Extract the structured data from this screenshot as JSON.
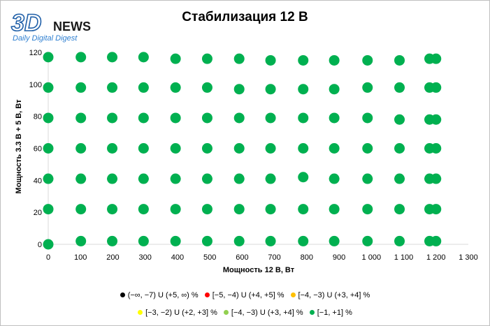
{
  "logo": {
    "brand": "3D",
    "word": "NEWS",
    "tagline": "Daily Digital Digest"
  },
  "chart_data": {
    "type": "scatter",
    "title": "Стабилизация 12 В",
    "xlabel": "Мощность  12 В, Вт",
    "ylabel": "Мощность  3.3 В + 5 В, Вт",
    "xlim": [
      0,
      1300
    ],
    "ylim": [
      0,
      120
    ],
    "x_ticks": [
      0,
      100,
      200,
      300,
      400,
      500,
      600,
      700,
      800,
      900,
      1000,
      1100,
      1200,
      1300
    ],
    "x_tick_labels": [
      "0",
      "100",
      "200",
      "300",
      "400",
      "500",
      "600",
      "700",
      "800",
      "900",
      "1 000",
      "1 100",
      "1 200",
      "1 300"
    ],
    "y_ticks": [
      0,
      20,
      40,
      60,
      80,
      100,
      120
    ],
    "y_tick_labels": [
      "0",
      "20",
      "40",
      "60",
      "80",
      "100",
      "120"
    ],
    "grid": false,
    "legend_position": "bottom",
    "series": [
      {
        "name": "(−∞, −7) U (+5, ∞) %",
        "color": "#000000",
        "points": []
      },
      {
        "name": "[−5, −4) U (+4, +5] %",
        "color": "#ff0000",
        "points": []
      },
      {
        "name": "[−4, −3) U (+3, +4] %",
        "color": "#ffc000",
        "points": []
      },
      {
        "name": "[−3, −2) U (+2, +3] %",
        "color": "#ffff00",
        "points": []
      },
      {
        "name": "[−4, −3) U (+3, +4] %",
        "color": "#92d050",
        "points": []
      },
      {
        "name": "[−1, +1] %",
        "color": "#00b050",
        "points": [
          [
            0,
            0
          ],
          [
            0,
            22
          ],
          [
            0,
            41
          ],
          [
            0,
            60
          ],
          [
            0,
            79
          ],
          [
            0,
            98
          ],
          [
            0,
            117
          ],
          [
            101,
            2
          ],
          [
            101,
            22
          ],
          [
            101,
            41
          ],
          [
            101,
            60
          ],
          [
            101,
            79
          ],
          [
            101,
            98
          ],
          [
            101,
            117
          ],
          [
            198,
            2
          ],
          [
            198,
            22
          ],
          [
            198,
            41
          ],
          [
            198,
            60
          ],
          [
            198,
            79
          ],
          [
            198,
            98
          ],
          [
            198,
            117
          ],
          [
            295,
            2
          ],
          [
            295,
            22
          ],
          [
            295,
            41
          ],
          [
            295,
            60
          ],
          [
            295,
            79
          ],
          [
            295,
            98
          ],
          [
            295,
            117
          ],
          [
            394,
            2
          ],
          [
            394,
            22
          ],
          [
            394,
            41
          ],
          [
            394,
            60
          ],
          [
            394,
            79
          ],
          [
            394,
            98
          ],
          [
            394,
            116
          ],
          [
            492,
            2
          ],
          [
            492,
            22
          ],
          [
            492,
            41
          ],
          [
            492,
            60
          ],
          [
            492,
            79
          ],
          [
            492,
            98
          ],
          [
            492,
            116
          ],
          [
            591,
            2
          ],
          [
            591,
            22
          ],
          [
            591,
            41
          ],
          [
            591,
            60
          ],
          [
            591,
            79
          ],
          [
            591,
            97
          ],
          [
            591,
            116
          ],
          [
            688,
            2
          ],
          [
            688,
            22
          ],
          [
            688,
            41
          ],
          [
            688,
            60
          ],
          [
            688,
            79
          ],
          [
            688,
            97
          ],
          [
            688,
            115
          ],
          [
            789,
            2
          ],
          [
            789,
            22
          ],
          [
            789,
            42
          ],
          [
            789,
            60
          ],
          [
            789,
            79
          ],
          [
            789,
            97
          ],
          [
            789,
            115
          ],
          [
            885,
            2
          ],
          [
            885,
            22
          ],
          [
            885,
            41
          ],
          [
            885,
            60
          ],
          [
            885,
            79
          ],
          [
            885,
            97
          ],
          [
            885,
            115
          ],
          [
            988,
            2
          ],
          [
            988,
            22
          ],
          [
            988,
            41
          ],
          [
            988,
            60
          ],
          [
            988,
            79
          ],
          [
            988,
            98
          ],
          [
            988,
            115
          ],
          [
            1087,
            2
          ],
          [
            1087,
            22
          ],
          [
            1087,
            41
          ],
          [
            1087,
            60
          ],
          [
            1087,
            78
          ],
          [
            1087,
            98
          ],
          [
            1087,
            115
          ],
          [
            1180,
            2
          ],
          [
            1180,
            22
          ],
          [
            1180,
            41
          ],
          [
            1180,
            60
          ],
          [
            1180,
            78
          ],
          [
            1180,
            98
          ],
          [
            1180,
            116
          ],
          [
            1200,
            2
          ],
          [
            1200,
            22
          ],
          [
            1200,
            41
          ],
          [
            1200,
            60
          ],
          [
            1200,
            78
          ],
          [
            1200,
            98
          ],
          [
            1200,
            116
          ]
        ]
      }
    ]
  }
}
